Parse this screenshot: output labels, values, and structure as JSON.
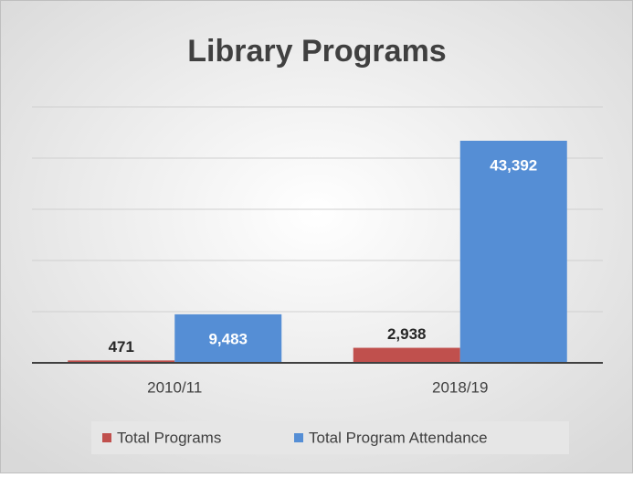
{
  "chart_data": {
    "type": "bar",
    "title": "Library Programs",
    "categories": [
      "2010/11",
      "2018/19"
    ],
    "series": [
      {
        "name": "Total Programs",
        "color": "#c0504d",
        "values": [
          471,
          2938
        ],
        "value_labels": [
          "471",
          "2,938"
        ]
      },
      {
        "name": "Total Program Attendance",
        "color": "#558ed5",
        "values": [
          9483,
          43392
        ],
        "value_labels": [
          "9,483",
          "43,392"
        ]
      }
    ],
    "ylim": [
      0,
      50000
    ],
    "yticks": [
      0,
      10000,
      20000,
      30000,
      40000,
      50000
    ],
    "grid": true,
    "legend": "bottom"
  }
}
